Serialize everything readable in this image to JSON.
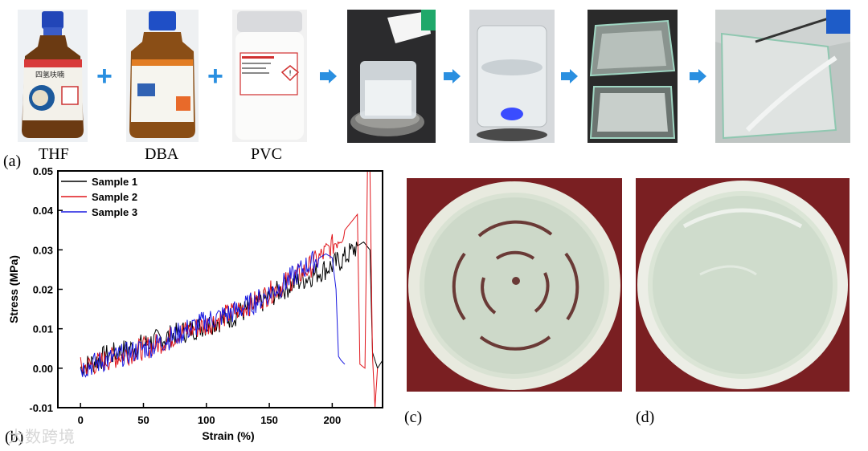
{
  "panel_a": {
    "caption": "(a)",
    "reagents": [
      {
        "name": "THF",
        "bottle_label": "四氢呋喃"
      },
      {
        "name": "DBA"
      },
      {
        "name": "PVC"
      }
    ],
    "arrow_color": "#2a8fe0",
    "plus_color": "#2a8fe0"
  },
  "panel_b": {
    "caption": "(b)"
  },
  "panel_c": {
    "caption": "(c)"
  },
  "panel_d": {
    "caption": "(d)"
  },
  "watermark": "大数跨境",
  "chart_data": {
    "type": "line",
    "title": "",
    "xlabel": "Strain (%)",
    "ylabel": "Stress (MPa)",
    "xlim": [
      -18,
      240
    ],
    "ylim": [
      -0.01,
      0.05
    ],
    "xticks": [
      "0",
      "50",
      "100",
      "150",
      "200"
    ],
    "yticks": [
      "-0.01",
      "0.00",
      "0.01",
      "0.02",
      "0.03",
      "0.04",
      "0.05"
    ],
    "legend_position": "top-left",
    "grid": false,
    "series": [
      {
        "name": "Sample 1",
        "color": "#000000",
        "x": [
          0,
          20,
          40,
          60,
          80,
          100,
          120,
          140,
          160,
          180,
          200,
          210,
          220,
          225,
          230,
          232,
          236,
          240
        ],
        "y": [
          0.0,
          0.003,
          0.005,
          0.007,
          0.009,
          0.011,
          0.013,
          0.016,
          0.02,
          0.023,
          0.026,
          0.028,
          0.031,
          0.032,
          0.03,
          0.004,
          0.0,
          0.002
        ]
      },
      {
        "name": "Sample 2",
        "color": "#e0161c",
        "x": [
          0,
          20,
          40,
          60,
          80,
          100,
          120,
          140,
          160,
          180,
          200,
          210,
          215,
          220,
          222,
          226,
          228,
          230,
          232,
          234,
          236
        ],
        "y": [
          0.0,
          0.002,
          0.004,
          0.006,
          0.009,
          0.011,
          0.014,
          0.017,
          0.021,
          0.025,
          0.031,
          0.035,
          0.037,
          0.039,
          0.001,
          0.0,
          0.05,
          0.05,
          0.003,
          -0.01,
          0.0
        ]
      },
      {
        "name": "Sample 3",
        "color": "#1a1ae0",
        "x": [
          0,
          20,
          40,
          60,
          80,
          100,
          120,
          140,
          160,
          180,
          190,
          195,
          200,
          203,
          205,
          207,
          210
        ],
        "y": [
          0.0,
          0.002,
          0.004,
          0.006,
          0.009,
          0.012,
          0.014,
          0.017,
          0.021,
          0.026,
          0.028,
          0.029,
          0.028,
          0.02,
          0.003,
          0.002,
          0.001
        ]
      }
    ]
  }
}
